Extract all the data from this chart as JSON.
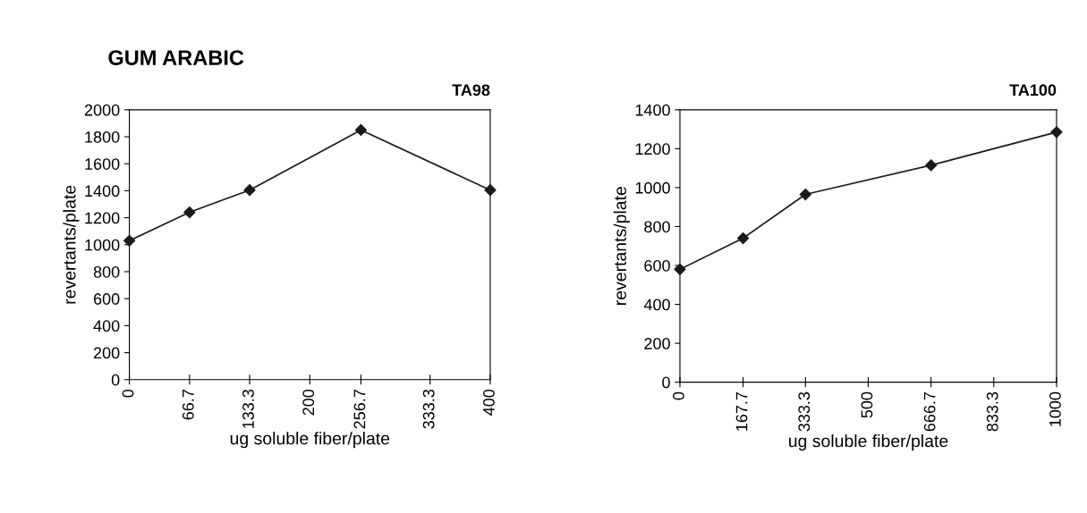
{
  "chart_data": [
    {
      "type": "line",
      "title": "GUM ARABIC",
      "subtitle": "TA98",
      "xlabel": "ug soluble fiber/plate",
      "ylabel": "revertants/plate",
      "x": [
        0,
        66.7,
        133.3,
        256.7,
        400
      ],
      "series": [
        {
          "color": "#1a1a1a",
          "values": [
            1030,
            1240,
            1405,
            1850,
            1405
          ]
        }
      ],
      "xlim": [
        0,
        400
      ],
      "xticks": [
        0,
        66.7,
        133.3,
        200,
        256.7,
        333.3,
        400
      ],
      "ylim": [
        0,
        2000
      ],
      "yticks": [
        0,
        200,
        400,
        600,
        800,
        1000,
        1200,
        1400,
        1600,
        1800,
        2000
      ],
      "marker": "diamond",
      "line_style": "solid",
      "grid": false,
      "legend": false
    },
    {
      "type": "line",
      "subtitle": "TA100",
      "xlabel": "ug soluble fiber/plate",
      "ylabel": "revertants/plate",
      "x": [
        0,
        167.7,
        333.3,
        666.7,
        1000
      ],
      "series": [
        {
          "color": "#1a1a1a",
          "values": [
            580,
            740,
            965,
            1115,
            1285
          ]
        }
      ],
      "xlim": [
        0,
        1000
      ],
      "xticks": [
        0,
        167.7,
        333.3,
        500,
        666.7,
        833.3,
        1000
      ],
      "ylim": [
        0,
        1400
      ],
      "yticks": [
        0,
        200,
        400,
        600,
        800,
        1000,
        1200,
        1400
      ],
      "marker": "diamond",
      "line_style": "solid",
      "grid": false,
      "legend": false
    }
  ]
}
